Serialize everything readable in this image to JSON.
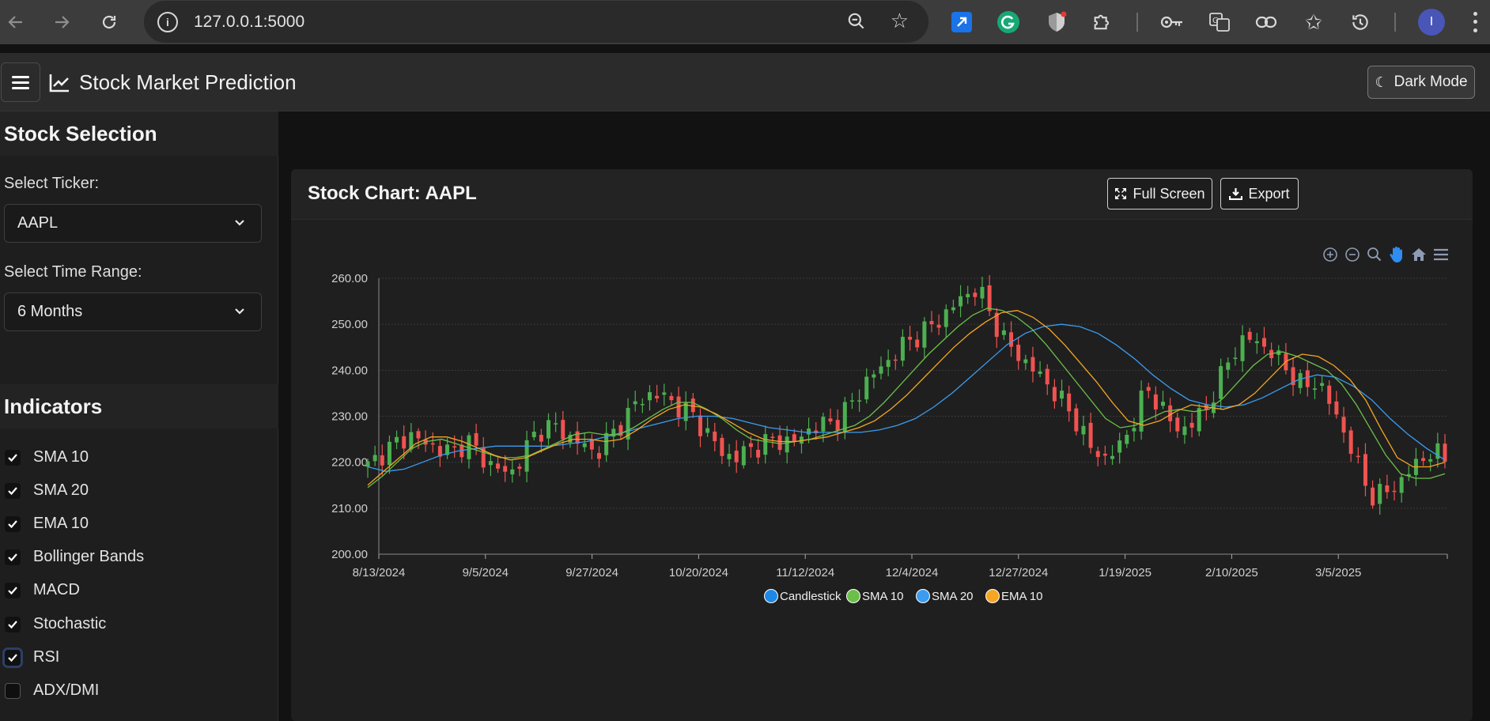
{
  "browser": {
    "url": "127.0.0.1:5000",
    "avatar_letter": "I"
  },
  "app": {
    "title": "Stock Market Prediction",
    "dark_mode_label": "Dark Mode"
  },
  "sidebar": {
    "stock_section_title": "Stock Selection",
    "ticker_label": "Select Ticker:",
    "ticker_value": "AAPL",
    "range_label": "Select Time Range:",
    "range_value": "6 Months",
    "indicators_title": "Indicators",
    "indicators": [
      {
        "label": "SMA 10",
        "checked": true
      },
      {
        "label": "SMA 20",
        "checked": true
      },
      {
        "label": "EMA 10",
        "checked": true
      },
      {
        "label": "Bollinger Bands",
        "checked": true
      },
      {
        "label": "MACD",
        "checked": true
      },
      {
        "label": "Stochastic",
        "checked": true
      },
      {
        "label": "RSI",
        "checked": true
      },
      {
        "label": "ADX/DMI",
        "checked": false
      }
    ]
  },
  "main": {
    "chart_title": "Stock Chart: AAPL",
    "fullscreen_label": "Full Screen",
    "export_label": "Export"
  },
  "colors": {
    "up": "#4caf50",
    "down": "#ef5350",
    "sma10": "#6cc04a",
    "sma20": "#3b9cf0",
    "ema10": "#f5a623",
    "legend_candle": "#1e88e5"
  },
  "chart_data": {
    "type": "candlestick",
    "x_ticks": [
      "8/13/2024",
      "9/5/2024",
      "9/27/2024",
      "10/20/2024",
      "11/12/2024",
      "12/4/2024",
      "12/27/2024",
      "1/19/2025",
      "2/10/2025",
      "3/5/2025"
    ],
    "y_ticks": [
      "200.00",
      "210.00",
      "220.00",
      "230.00",
      "240.00",
      "250.00",
      "260.00"
    ],
    "ylim": [
      200,
      260
    ],
    "legend": [
      "Candlestick",
      "SMA 10",
      "SMA 20",
      "EMA 10"
    ],
    "close_path": [
      219,
      222,
      224,
      226,
      224,
      223,
      222,
      225,
      221,
      219,
      217,
      222,
      227,
      228,
      226,
      224,
      222,
      225,
      229,
      233,
      235,
      234,
      232,
      230,
      226,
      222,
      221,
      223,
      224,
      225,
      224,
      227,
      228,
      229,
      232,
      237,
      240,
      243,
      246,
      248,
      250,
      253,
      256,
      258,
      252,
      246,
      243,
      240,
      237,
      233,
      229,
      223,
      221,
      223,
      229,
      236,
      232,
      227,
      228,
      231,
      237,
      244,
      247,
      246,
      243,
      240,
      236,
      238,
      232,
      226,
      218,
      212,
      214,
      216,
      220,
      222,
      221
    ],
    "sma10": [
      214.5,
      217,
      220,
      223,
      224.5,
      225,
      224,
      223,
      222,
      221,
      221,
      221.5,
      223,
      224.5,
      226,
      226.5,
      226,
      226,
      227.5,
      229.5,
      231.5,
      233,
      233,
      231.5,
      229.5,
      227,
      225,
      224.5,
      224,
      224.5,
      225,
      226,
      227,
      228,
      230,
      233,
      236.5,
      240,
      243.5,
      246.5,
      249.5,
      252,
      253.5,
      253,
      251.5,
      249,
      245.5,
      241.5,
      237.5,
      233.5,
      229.5,
      227.5,
      228,
      229.5,
      231,
      231.5,
      231,
      231.5,
      234,
      237.5,
      241,
      243.5,
      244,
      243,
      241.5,
      240,
      237,
      232.5,
      227,
      221.5,
      217.5,
      216.5,
      216.5,
      217.5
    ],
    "sma20": [
      219,
      218,
      218.5,
      220,
      221.5,
      222.5,
      223,
      223.5,
      223.5,
      223.5,
      223.5,
      224,
      224.5,
      225.5,
      226.5,
      227.5,
      228.5,
      229.5,
      230,
      230,
      229.5,
      228.5,
      227.5,
      227,
      226.5,
      226.5,
      226.5,
      226.5,
      227,
      228,
      229.5,
      232,
      235,
      238.5,
      242,
      245.5,
      248,
      249.5,
      250,
      249.5,
      248,
      245.5,
      242.5,
      239,
      236,
      233.5,
      232.5,
      232,
      232.5,
      234,
      236,
      238,
      239,
      238.5,
      236.5,
      233.5,
      229.5,
      226,
      223,
      220.5
    ],
    "ema10": [
      215,
      218,
      221,
      224,
      225.5,
      225.5,
      224.5,
      223,
      221.5,
      220.5,
      221,
      222.5,
      224,
      225,
      225,
      224.5,
      225,
      227,
      229.5,
      231.5,
      232.5,
      232,
      230.5,
      228.5,
      226.5,
      225,
      224.5,
      224.5,
      225,
      225.5,
      226.5,
      227.5,
      229,
      231.5,
      234.5,
      238,
      241.5,
      245,
      248,
      250.5,
      252.5,
      253,
      251.5,
      249,
      245.5,
      241.5,
      237.5,
      233,
      229,
      228,
      229,
      231,
      232.5,
      232,
      231.5,
      232.5,
      235,
      238.5,
      242,
      243.5,
      243,
      241,
      238,
      233.5,
      227,
      221,
      219,
      219,
      220
    ]
  }
}
